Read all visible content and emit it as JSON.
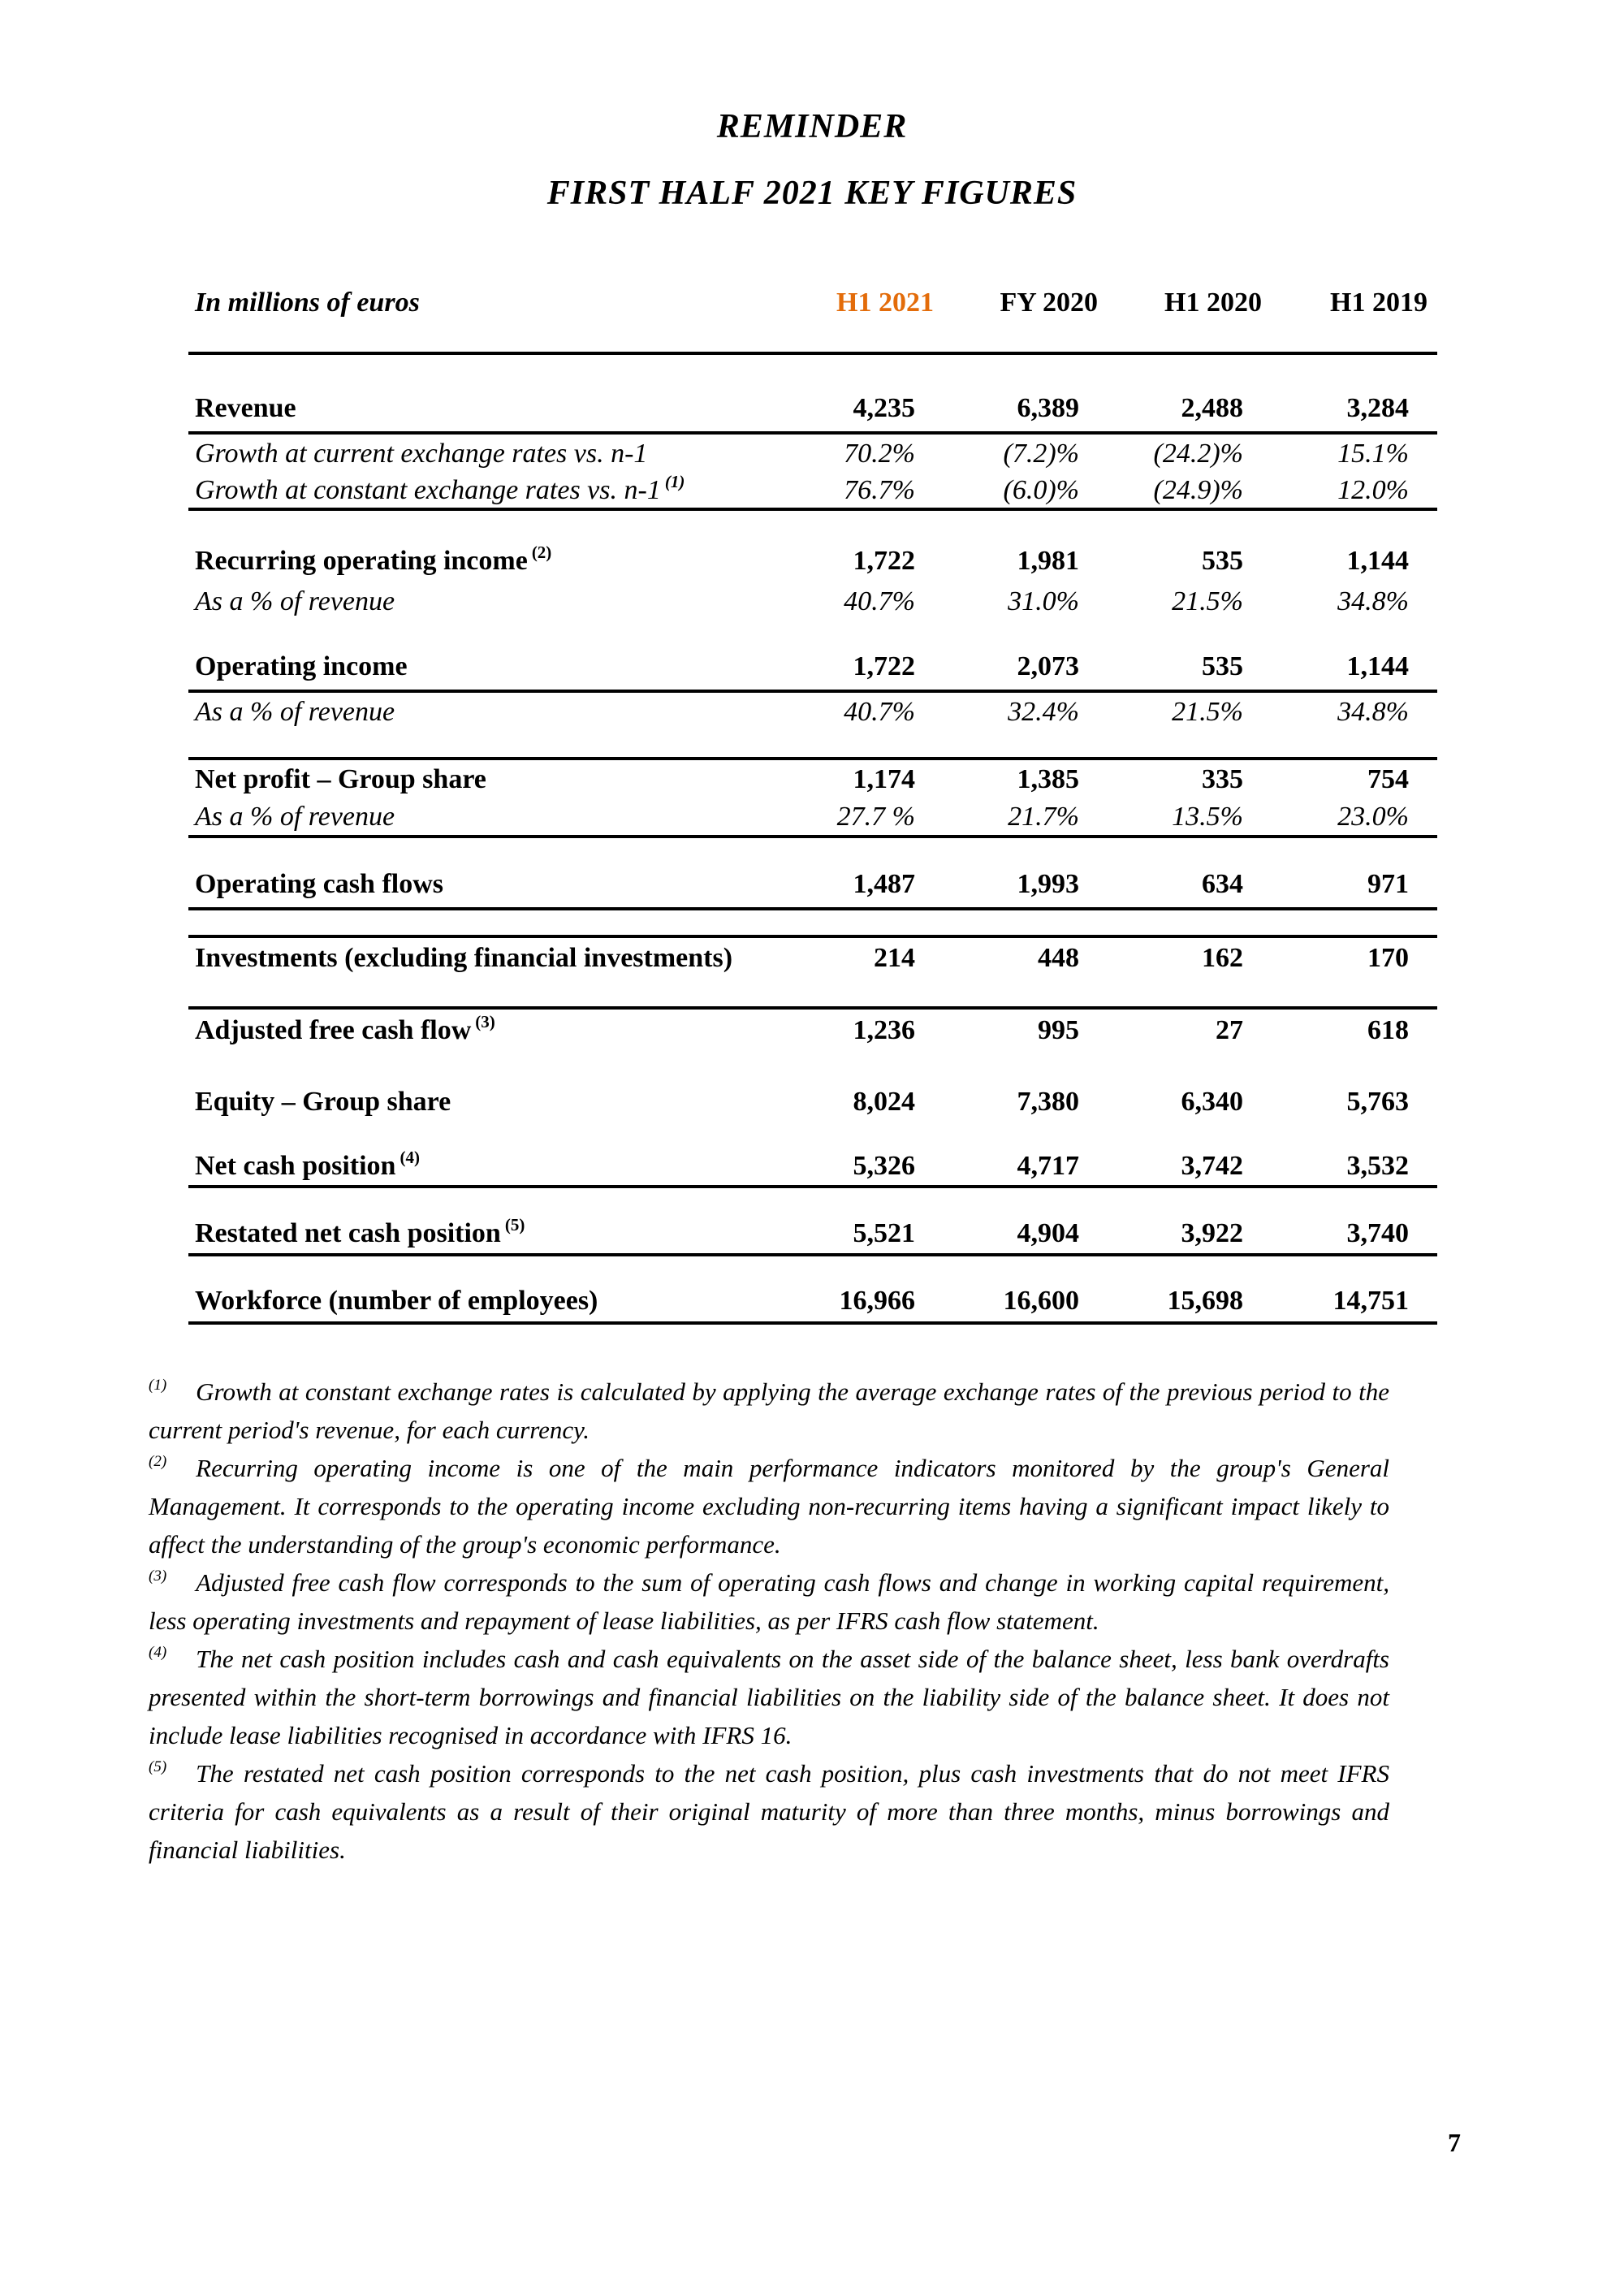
{
  "titles": {
    "line1": "REMINDER",
    "line2": "FIRST HALF 2021 KEY FIGURES"
  },
  "table": {
    "unit_label": "In millions of euros",
    "accent_color": "#E36C0A",
    "columns": [
      "H1 2021",
      "FY 2020",
      "H1 2020",
      "H1 2019"
    ],
    "rows": [
      {
        "label": "Revenue",
        "values": [
          "4,235",
          "6,389",
          "2,488",
          "3,284"
        ]
      },
      {
        "label": "Growth at current exchange rates vs. n-1",
        "values": [
          "70.2%",
          "(7.2)%",
          "(24.2)%",
          "15.1%"
        ]
      },
      {
        "label": "Growth at constant exchange rates vs. n-1",
        "sup": "(1)",
        "values": [
          "76.7%",
          "(6.0)%",
          "(24.9)%",
          "12.0%"
        ]
      },
      {
        "label": "Recurring operating income",
        "sup": "(2)",
        "values": [
          "1,722",
          "1,981",
          "535",
          "1,144"
        ]
      },
      {
        "label": "As a % of revenue",
        "values": [
          "40.7%",
          "31.0%",
          "21.5%",
          "34.8%"
        ]
      },
      {
        "label": "Operating income",
        "values": [
          "1,722",
          "2,073",
          "535",
          "1,144"
        ]
      },
      {
        "label": "As a % of revenue",
        "values": [
          "40.7%",
          "32.4%",
          "21.5%",
          "34.8%"
        ]
      },
      {
        "label": "Net profit – Group share",
        "values": [
          "1,174",
          "1,385",
          "335",
          "754"
        ]
      },
      {
        "label": "As a % of revenue",
        "values": [
          "27.7 %",
          "21.7%",
          "13.5%",
          "23.0%"
        ]
      },
      {
        "label": "Operating cash flows",
        "values": [
          "1,487",
          "1,993",
          "634",
          "971"
        ]
      },
      {
        "label": "Investments (excluding financial investments)",
        "values": [
          "214",
          "448",
          "162",
          "170"
        ]
      },
      {
        "label": "Adjusted free cash flow",
        "sup": "(3)",
        "values": [
          "1,236",
          "995",
          "27",
          "618"
        ]
      },
      {
        "label": "Equity – Group share",
        "values": [
          "8,024",
          "7,380",
          "6,340",
          "5,763"
        ]
      },
      {
        "label": "Net cash position",
        "sup": "(4)",
        "values": [
          "5,326",
          "4,717",
          "3,742",
          "3,532"
        ]
      },
      {
        "label": "Restated net cash position",
        "sup": "(5)",
        "values": [
          "5,521",
          "4,904",
          "3,922",
          "3,740"
        ]
      },
      {
        "label": "Workforce (number of employees)",
        "values": [
          "16,966",
          "16,600",
          "15,698",
          "14,751"
        ]
      }
    ]
  },
  "footnotes": [
    {
      "marker": "(1)",
      "text": "Growth at constant exchange rates is calculated by applying the average exchange rates of the previous period to the current period's revenue, for each currency."
    },
    {
      "marker": "(2)",
      "text": "Recurring operating income is one of the main performance indicators monitored by the group's General Management. It corresponds to the operating income excluding non-recurring items having a significant impact likely to affect the understanding of the group's economic performance."
    },
    {
      "marker": "(3)",
      "text": "Adjusted free cash flow corresponds to the sum of operating cash flows and change in working capital requirement, less operating investments and repayment of lease liabilities, as per IFRS cash flow statement."
    },
    {
      "marker": "(4)",
      "text": "The net cash position includes cash and cash equivalents on the asset side of the balance sheet, less bank overdrafts presented within the short-term borrowings and financial liabilities on the liability side of the balance sheet. It does not include lease liabilities recognised in accordance with IFRS 16."
    },
    {
      "marker": "(5)",
      "text": "The restated net cash position corresponds to the net cash position, plus cash investments that do not meet IFRS criteria for cash equivalents as a result of their original maturity of more than three months, minus borrowings and financial liabilities."
    }
  ],
  "page": {
    "number": "7"
  }
}
